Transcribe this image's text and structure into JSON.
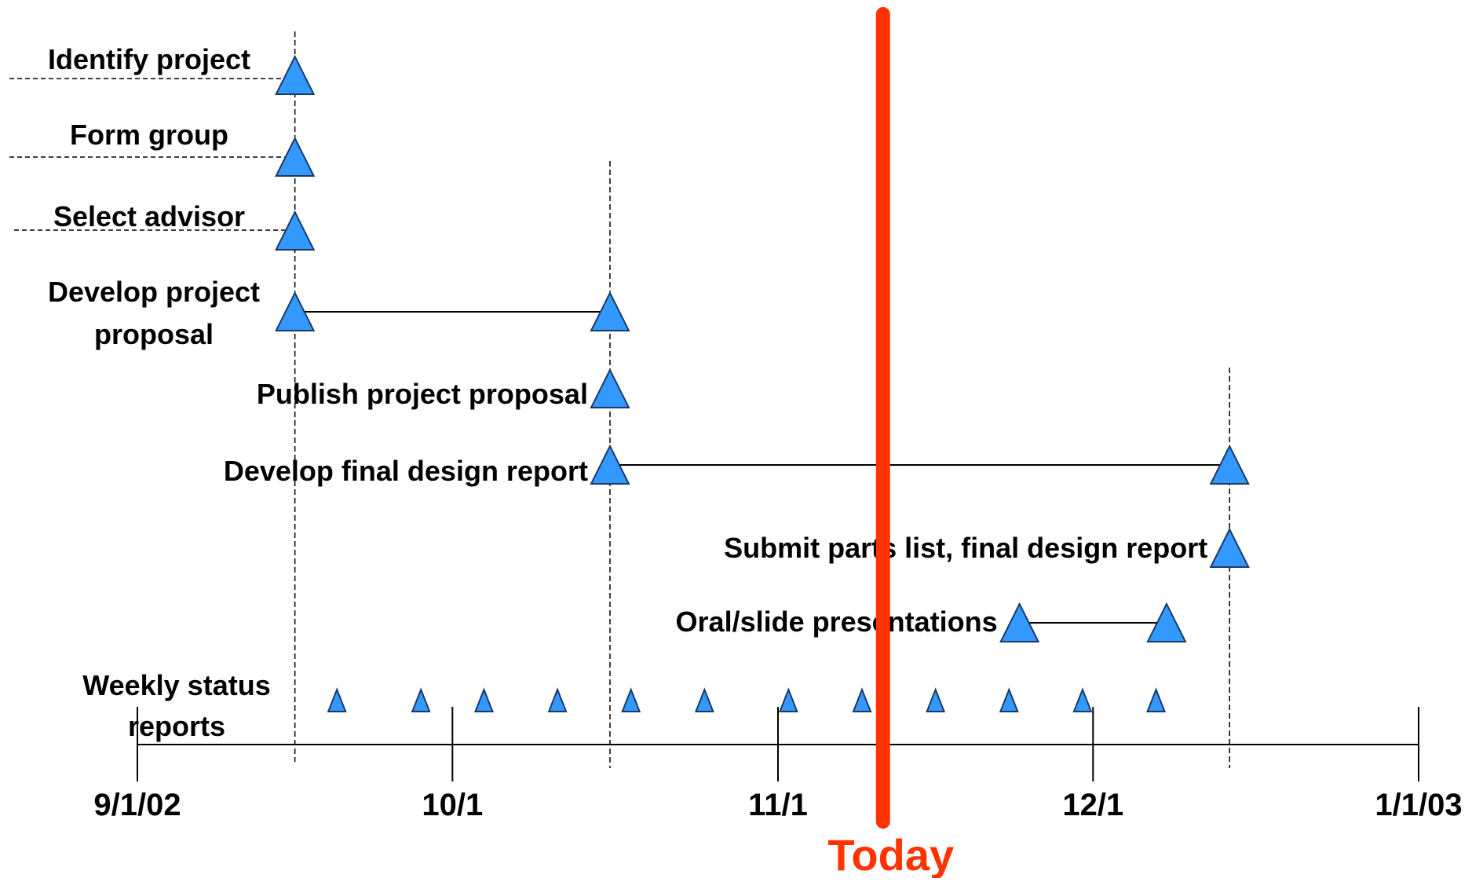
{
  "colors": {
    "milestone_fill": "#3399ff",
    "milestone_stroke": "#1a3a66",
    "today_line": "#ff3300",
    "axis": "#000000",
    "background": "#ffffff"
  },
  "timeline": {
    "start": "2002-09-01",
    "end": "2003-01-01",
    "ticks": [
      {
        "date": "2002-09-01",
        "label": "9/1/02"
      },
      {
        "date": "2002-10-01",
        "label": "10/1"
      },
      {
        "date": "2002-11-01",
        "label": "11/1"
      },
      {
        "date": "2002-12-01",
        "label": "12/1"
      },
      {
        "date": "2003-01-01",
        "label": "1/1/03"
      }
    ]
  },
  "today": {
    "label": "Today",
    "date": "2002-11-11"
  },
  "reference_dates": [
    "2002-09-16",
    "2002-10-16",
    "2002-12-14"
  ],
  "tasks": [
    {
      "id": "identify-project",
      "lines": [
        "Identify project"
      ],
      "start": "2002-09-16",
      "end": null
    },
    {
      "id": "form-group",
      "lines": [
        "Form group"
      ],
      "start": "2002-09-16",
      "end": null
    },
    {
      "id": "select-advisor",
      "lines": [
        "Select advisor"
      ],
      "start": "2002-09-16",
      "end": null
    },
    {
      "id": "develop-project-proposal",
      "lines": [
        "Develop project",
        "proposal"
      ],
      "start": "2002-09-16",
      "end": "2002-10-16"
    },
    {
      "id": "publish-project-proposal",
      "lines": [
        "Publish project proposal"
      ],
      "start": "2002-10-16",
      "end": null
    },
    {
      "id": "develop-final-design-report",
      "lines": [
        "Develop final design report"
      ],
      "start": "2002-10-16",
      "end": "2002-12-14"
    },
    {
      "id": "submit-parts-list",
      "lines": [
        "Submit parts list, final design report"
      ],
      "start": "2002-12-14",
      "end": null
    },
    {
      "id": "oral-slide-presentations",
      "lines": [
        "Oral/slide presentations"
      ],
      "start": "2002-11-24",
      "end": "2002-12-08"
    }
  ],
  "weekly": {
    "lines": [
      "Weekly status",
      "reports"
    ],
    "dates": [
      "2002-09-20",
      "2002-09-28",
      "2002-10-04",
      "2002-10-11",
      "2002-10-18",
      "2002-10-25",
      "2002-11-02",
      "2002-11-09",
      "2002-11-16",
      "2002-11-23",
      "2002-11-30",
      "2002-12-07"
    ]
  }
}
